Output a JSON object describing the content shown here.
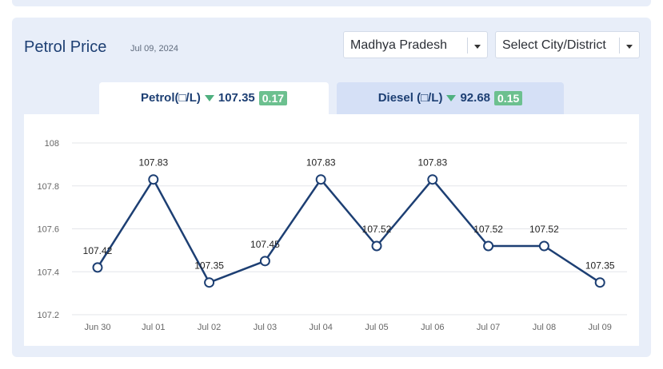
{
  "header": {
    "title": "Petrol Price",
    "date": "Jul 09, 2024",
    "state_select": "Madhya Pradesh",
    "city_select": "Select City/District"
  },
  "tabs": [
    {
      "label": "Petrol(□/L)",
      "price": "107.35",
      "change": "0.17",
      "trend": "down",
      "active": true
    },
    {
      "label": "Diesel (□/L)",
      "price": "92.68",
      "change": "0.15",
      "trend": "down",
      "active": false
    }
  ],
  "colors": {
    "line": "#1d3f73",
    "badge": "#6cc08f",
    "trend_down": "#4fb07f",
    "card_bg": "#e8eef9"
  },
  "chart_data": {
    "type": "line",
    "categories": [
      "Jun 30",
      "Jul 01",
      "Jul 02",
      "Jul 03",
      "Jul 04",
      "Jul 05",
      "Jul 06",
      "Jul 07",
      "Jul 08",
      "Jul 09"
    ],
    "values": [
      107.42,
      107.83,
      107.35,
      107.45,
      107.83,
      107.52,
      107.83,
      107.52,
      107.52,
      107.35
    ],
    "labels": [
      "107.42",
      "107.83",
      "107.35",
      "107.45",
      "107.83",
      "107.52",
      "107.83",
      "107.52",
      "107.52",
      "107.35"
    ],
    "yticks": [
      "107.2",
      "107.4",
      "107.6",
      "107.8",
      "108"
    ],
    "ylim": [
      107.2,
      108
    ],
    "grid": true,
    "legend": "none"
  }
}
